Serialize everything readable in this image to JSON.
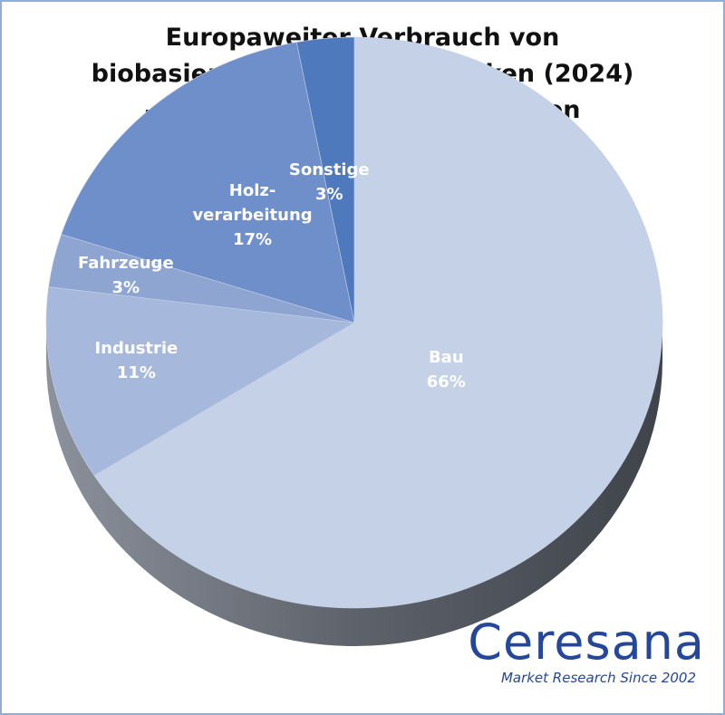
{
  "chart_data": {
    "type": "pie",
    "title": [
      "Europaweiter Verbrauch von",
      "biobasierten Farben und Lacken (2024)",
      "– aufgeteilt nach Anwendungen"
    ],
    "slices": [
      {
        "name": "Bau",
        "label_lines": [
          "Bau"
        ],
        "percent_label": "66%",
        "value": 66,
        "color": "#c5d1e6"
      },
      {
        "name": "Industrie",
        "label_lines": [
          "Industrie"
        ],
        "percent_label": "11%",
        "value": 11,
        "color": "#a6b8db"
      },
      {
        "name": "Fahrzeuge",
        "label_lines": [
          "Fahrzeuge"
        ],
        "percent_label": "3%",
        "value": 3,
        "color": "#8ea5d2"
      },
      {
        "name": "Holzverarbeitung",
        "label_lines": [
          "Holz-",
          "verarbeitung"
        ],
        "percent_label": "17%",
        "value": 17,
        "color": "#6e8fc9"
      },
      {
        "name": "Sonstige",
        "label_lines": [
          "Sonstige"
        ],
        "percent_label": "3%",
        "value": 3,
        "color": "#4f79bd"
      }
    ],
    "legend": "none"
  },
  "branding": {
    "logo_name": "Ceresana",
    "logo_tagline": "Market Research Since 2002",
    "color": "#24479a"
  }
}
